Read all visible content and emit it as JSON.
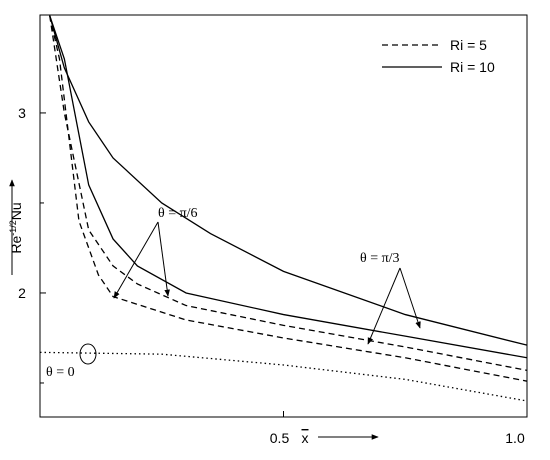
{
  "chart_data": {
    "type": "line",
    "ylabel": {
      "base": "Re",
      "sup": "-1/2",
      "rest": "Nu"
    },
    "xlabel": "x",
    "xlim": [
      0,
      1.0
    ],
    "ylim": [
      1.311,
      3.544
    ],
    "xticks": [
      0.5,
      {
        "value": 1.0,
        "label": "1.0"
      }
    ],
    "yticks": [
      2,
      3
    ],
    "yminor": [
      1.5,
      2.5
    ],
    "legend": [
      {
        "name": "Ri = 5",
        "dash": "dashed"
      },
      {
        "name": "Ri = 10",
        "dash": "solid"
      }
    ],
    "series": [
      {
        "dash": "solid",
        "color": "#000",
        "x": [
          0.02,
          0.05,
          0.1,
          0.15,
          0.25,
          0.35,
          0.5,
          0.75,
          1.0
        ],
        "values": [
          3.54,
          3.25,
          2.95,
          2.75,
          2.5,
          2.33,
          2.12,
          1.88,
          1.71
        ]
      },
      {
        "dash": "solid",
        "color": "#000",
        "x": [
          0.02,
          0.05,
          0.1,
          0.15,
          0.2,
          0.3,
          0.5,
          0.75,
          1.0
        ],
        "values": [
          3.54,
          3.3,
          2.6,
          2.3,
          2.15,
          2.0,
          1.88,
          1.76,
          1.64
        ]
      },
      {
        "dash": "dashed",
        "color": "#000",
        "x": [
          0.02,
          0.05,
          0.1,
          0.15,
          0.2,
          0.3,
          0.5,
          0.75,
          1.0
        ],
        "values": [
          3.54,
          3.0,
          2.35,
          2.15,
          2.05,
          1.93,
          1.82,
          1.7,
          1.57
        ]
      },
      {
        "dash": "dashed",
        "color": "#000",
        "x": [
          0.02,
          0.04,
          0.08,
          0.12,
          0.15,
          0.3,
          0.5,
          0.75,
          1.0
        ],
        "values": [
          3.54,
          3.3,
          2.4,
          2.1,
          1.98,
          1.85,
          1.75,
          1.64,
          1.51
        ]
      },
      {
        "dash": "dotted",
        "color": "#000",
        "x": [
          0,
          0.25,
          0.5,
          0.75,
          1.0
        ],
        "values": [
          1.67,
          1.66,
          1.6,
          1.52,
          1.4
        ]
      }
    ],
    "annotations": [
      "θ = π/6",
      "θ = π/3",
      "θ = 0"
    ]
  }
}
